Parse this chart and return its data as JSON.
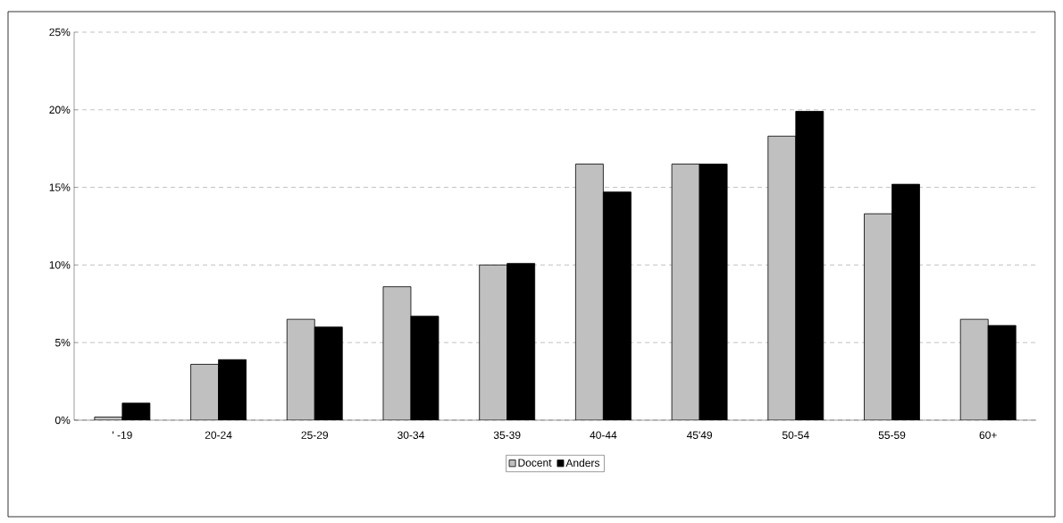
{
  "chart_data": {
    "type": "bar",
    "categories": [
      "' -19",
      "20-24",
      "25-29",
      "30-34",
      "35-39",
      "40-44",
      "45'49",
      "50-54",
      "55-59",
      "60+"
    ],
    "series": [
      {
        "name": "Docent",
        "color": "#c0c0c0",
        "values": [
          0.2,
          3.6,
          6.5,
          8.6,
          10.0,
          16.5,
          16.5,
          18.3,
          13.3,
          6.5
        ]
      },
      {
        "name": "Anders",
        "color": "#000000",
        "values": [
          1.1,
          3.9,
          6.0,
          6.7,
          10.1,
          14.7,
          16.5,
          19.9,
          15.2,
          6.1
        ]
      }
    ],
    "ylim": [
      0,
      25
    ],
    "yticks": [
      {
        "value": 0,
        "label": "0%"
      },
      {
        "value": 5,
        "label": "5%"
      },
      {
        "value": 10,
        "label": "10%"
      },
      {
        "value": 15,
        "label": "15%"
      },
      {
        "value": 20,
        "label": "20%"
      },
      {
        "value": 25,
        "label": "25%"
      }
    ],
    "grid": "y",
    "legend": "bottom"
  }
}
